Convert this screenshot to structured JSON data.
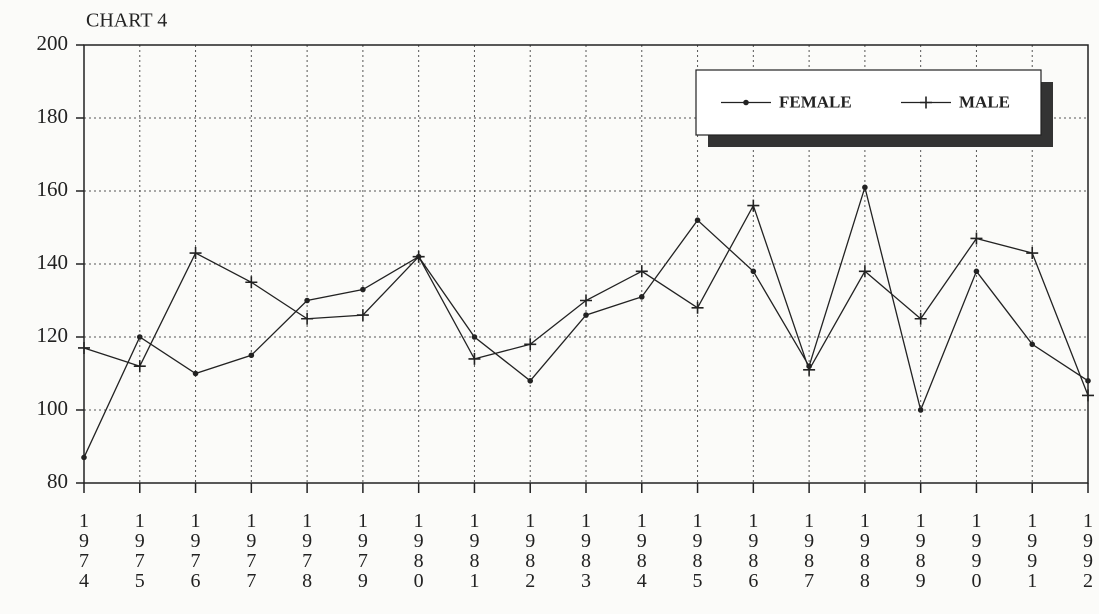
{
  "chart_data": {
    "type": "line",
    "title": "CHART 4",
    "categories": [
      "1974",
      "1975",
      "1976",
      "1977",
      "1978",
      "1979",
      "1980",
      "1981",
      "1982",
      "1983",
      "1984",
      "1985",
      "1986",
      "1987",
      "1988",
      "1989",
      "1990",
      "1991",
      "1992"
    ],
    "series": [
      {
        "name": "FEMALE",
        "color": "#222222",
        "marker": "dot",
        "values": [
          87,
          120,
          110,
          115,
          130,
          133,
          142,
          120,
          108,
          126,
          131,
          152,
          138,
          112,
          161,
          100,
          138,
          118,
          108
        ]
      },
      {
        "name": "MALE",
        "color": "#222222",
        "marker": "plus",
        "values": [
          117,
          112,
          143,
          135,
          125,
          126,
          142,
          114,
          118,
          130,
          138,
          128,
          156,
          111,
          138,
          125,
          147,
          143,
          104
        ]
      }
    ],
    "ylim": [
      80,
      200
    ],
    "yticks": [
      80,
      100,
      120,
      140,
      160,
      180,
      200
    ],
    "grid": true,
    "legend": "upper right"
  }
}
